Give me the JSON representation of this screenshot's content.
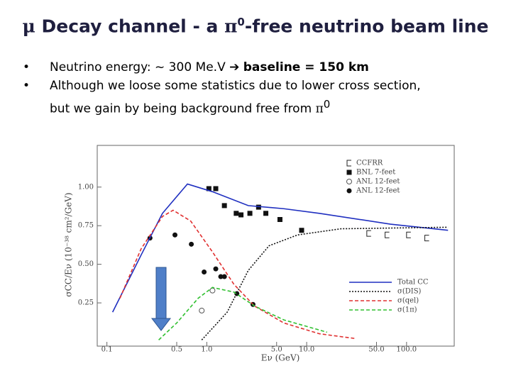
{
  "title": [
    "μ",
    " Decay channel - a ",
    "π",
    "0",
    "-free neutrino beam line"
  ],
  "bullets": [
    [
      "Neutrino energy: ~ 300 Me.V",
      "baseline = 150 km"
    ],
    [
      "Although we loose some statistics due to lower cross section,",
      "but we gain by being background free from ",
      "π",
      "0"
    ]
  ],
  "chart_data": {
    "type": "line",
    "xscale": "log",
    "x_label": "Eν   (GeV)",
    "y_label": "σCC/Eν   (10⁻³⁸ cm²/GeV)",
    "xlim": [
      0.08,
      300
    ],
    "ylim": [
      -0.03,
      1.27
    ],
    "xticks": [
      0.1,
      0.5,
      {
        "value": 1,
        "label": "1.0"
      },
      {
        "value": 5,
        "label": "5.0"
      },
      {
        "value": 10,
        "label": "10.0"
      },
      {
        "value": 50,
        "label": "50.0"
      },
      {
        "value": 100,
        "label": "100.0"
      }
    ],
    "yticks": [
      {
        "value": 1,
        "label": "1.00"
      },
      {
        "value": 0.75,
        "label": "0.75"
      },
      {
        "value": 0.5,
        "label": "0.50"
      },
      {
        "value": 0.25,
        "label": "0.25"
      }
    ],
    "series": [
      {
        "name": "CCFRR",
        "type": "scatter",
        "marker": "bracket",
        "color": "#222",
        "x": [
          42,
          64,
          105,
          160
        ],
        "values": [
          0.7,
          0.69,
          0.69,
          0.67
        ]
      },
      {
        "name": "BNL 7-feet",
        "type": "scatter",
        "marker": "square",
        "color": "#111",
        "x": [
          1.05,
          1.23,
          1.5,
          1.97,
          2.2,
          2.7,
          3.3,
          3.9,
          5.4,
          8.9
        ],
        "values": [
          0.99,
          0.99,
          0.88,
          0.83,
          0.82,
          0.83,
          0.87,
          0.83,
          0.79,
          0.72
        ]
      },
      {
        "name": "ANL 12-feet",
        "type": "scatter",
        "marker": "open-circle",
        "color": "#555",
        "x": [
          0.89,
          1.14
        ],
        "values": [
          0.2,
          0.33
        ]
      },
      {
        "name": "ANL 12-feet",
        "type": "scatter",
        "marker": "circle",
        "color": "#111",
        "x": [
          0.27,
          0.48,
          0.7,
          0.94,
          1.23,
          1.38,
          1.5,
          2.0,
          2.9
        ],
        "values": [
          0.67,
          0.69,
          0.63,
          0.45,
          0.47,
          0.42,
          0.42,
          0.31,
          0.24
        ]
      },
      {
        "name": "Total CC",
        "type": "line",
        "dash": "solid",
        "color": "#1f2fc0",
        "x": [
          0.114,
          0.22,
          0.36,
          0.64,
          1.14,
          2.6,
          5.9,
          13.4,
          69,
          260
        ],
        "values": [
          0.19,
          0.56,
          0.83,
          1.02,
          0.97,
          0.88,
          0.86,
          0.83,
          0.76,
          0.72
        ]
      },
      {
        "name": "σ(DIS)",
        "type": "line",
        "dash": "dotted",
        "color": "#111",
        "x": [
          0.89,
          1.6,
          2.6,
          4.2,
          8.1,
          22,
          260
        ],
        "values": [
          0.01,
          0.19,
          0.46,
          0.62,
          0.69,
          0.73,
          0.74
        ]
      },
      {
        "name": "σ(qel)",
        "type": "line",
        "dash": "dashed",
        "color": "#e03030",
        "x": [
          0.135,
          0.22,
          0.36,
          0.46,
          0.69,
          1.14,
          1.87,
          3.0,
          5.9,
          13.4,
          30
        ],
        "values": [
          0.28,
          0.6,
          0.81,
          0.85,
          0.78,
          0.58,
          0.37,
          0.23,
          0.12,
          0.05,
          0.02
        ]
      },
      {
        "name": "σ(1π)",
        "type": "line",
        "dash": "dashed",
        "color": "#30c030",
        "x": [
          0.33,
          0.5,
          0.82,
          1.14,
          1.87,
          3.0,
          5.9,
          16
        ],
        "values": [
          0.01,
          0.12,
          0.28,
          0.35,
          0.32,
          0.23,
          0.14,
          0.06
        ]
      }
    ]
  }
}
